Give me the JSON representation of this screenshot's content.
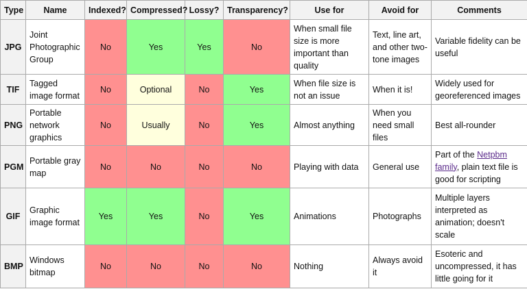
{
  "table": {
    "header": [
      "Type",
      "Name",
      "Indexed?",
      "Compressed?",
      "Lossy?",
      "Transparency?",
      "Use for",
      "Avoid for",
      "Comments"
    ],
    "rows": [
      [
        "JPG",
        "Joint Photographic Group",
        "No",
        "Yes",
        "Yes",
        "No",
        "When small file size is more important than quality",
        "Text, line art, and other two-tone images",
        "Variable fidelity can be useful"
      ],
      [
        "TIF",
        "Tagged image format",
        "No",
        "Optional",
        "No",
        "Yes",
        "When file size is not an issue",
        "When it is!",
        "Widely used for georeferenced images"
      ],
      [
        "PNG",
        "Portable network graphics",
        "No",
        "Usually",
        "No",
        "Yes",
        "Almost anything",
        "When you need small files",
        "Best all-rounder"
      ],
      [
        "PGM",
        "Portable gray map",
        "No",
        "No",
        "No",
        "No",
        "Playing with data",
        "General use",
        [
          "Part of the ",
          "Netpbm family",
          ", plain text file is good for scripting"
        ]
      ],
      [
        "GIF",
        "Graphic image format",
        "Yes",
        "Yes",
        "No",
        "Yes",
        "Animations",
        "Photographs",
        "Multiple layers interpreted as animation; doesn't scale"
      ],
      [
        "BMP",
        "Windows bitmap",
        "No",
        "No",
        "No",
        "No",
        "Nothing",
        "Always avoid it",
        "Esoteric and uncompressed, it has little going for it"
      ]
    ]
  }
}
